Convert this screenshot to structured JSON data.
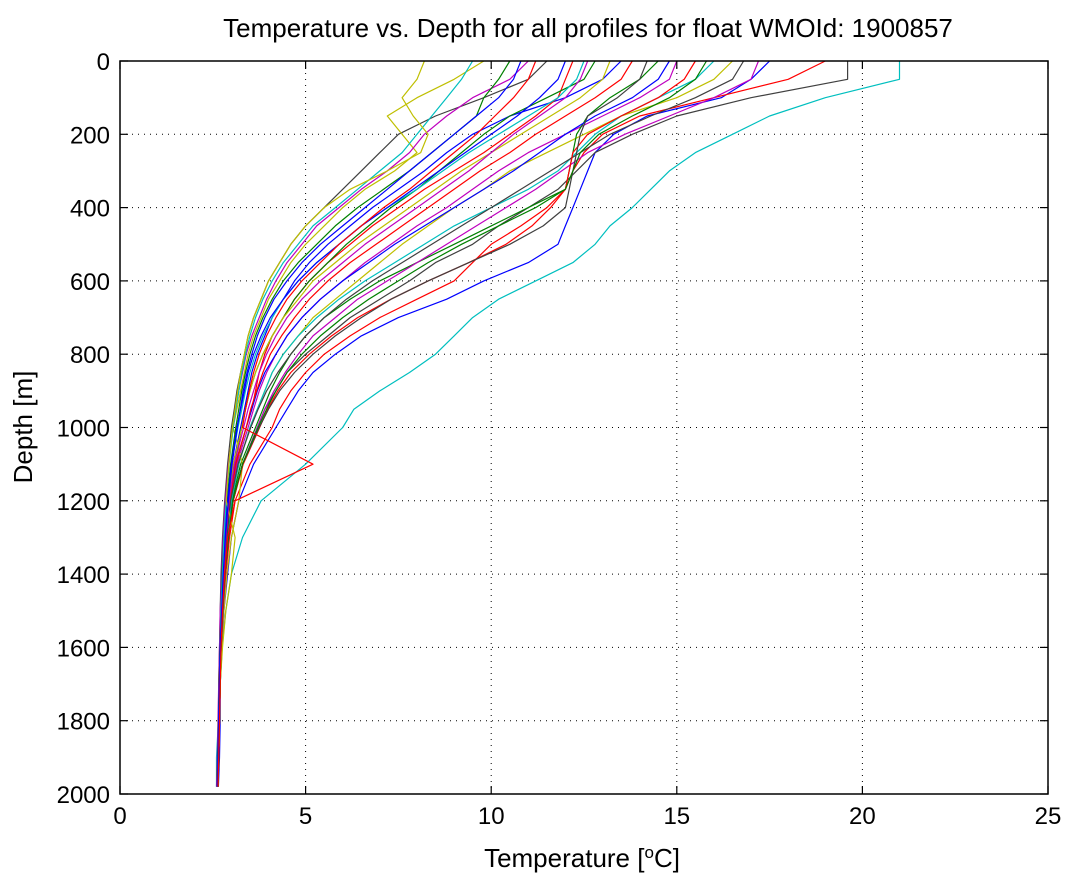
{
  "chart_data": {
    "type": "line",
    "title": "Temperature vs. Depth for all profiles for float WMOId: 1900857",
    "xlabel_main": "Temperature [",
    "xlabel_sup": "o",
    "xlabel_end": "C]",
    "ylabel": "Depth [m]",
    "xlim": [
      0,
      25
    ],
    "ylim": [
      0,
      2000
    ],
    "y_reversed": true,
    "grid": true,
    "x_ticks": [
      "0",
      "5",
      "10",
      "15",
      "20",
      "25"
    ],
    "y_ticks": [
      "0",
      "200",
      "400",
      "600",
      "800",
      "1000",
      "1200",
      "1400",
      "1600",
      "1800",
      "2000"
    ],
    "depths": [
      0,
      50,
      100,
      150,
      200,
      250,
      300,
      350,
      400,
      450,
      500,
      550,
      600,
      650,
      700,
      750,
      800,
      850,
      900,
      950,
      1000,
      1100,
      1200,
      1300,
      1400,
      1500,
      1600,
      1700,
      1800,
      1900,
      1980
    ],
    "series": [
      {
        "color": "#00bfbf",
        "values": [
          21.0,
          21.0,
          19.0,
          17.5,
          16.5,
          15.5,
          14.8,
          14.3,
          13.8,
          13.2,
          12.8,
          12.2,
          11.2,
          10.2,
          9.5,
          9.0,
          8.5,
          7.8,
          7.0,
          6.3,
          6.0,
          5.0,
          3.8,
          3.3,
          3.0,
          2.85,
          2.75,
          2.7,
          2.65,
          2.6,
          2.6
        ]
      },
      {
        "color": "#0000ff",
        "values": [
          17.5,
          17.0,
          16.2,
          14.2,
          13.3,
          12.8,
          12.6,
          12.4,
          12.2,
          12.0,
          11.8,
          11.0,
          9.8,
          8.8,
          7.5,
          6.5,
          5.8,
          5.2,
          4.8,
          4.5,
          4.2,
          3.6,
          3.2,
          3.0,
          2.9,
          2.8,
          2.75,
          2.7,
          2.7,
          2.68,
          2.65
        ]
      },
      {
        "color": "#ff0000",
        "values": [
          19.0,
          18.0,
          16.0,
          14.0,
          13.0,
          12.5,
          12.2,
          12.0,
          11.5,
          10.8,
          10.0,
          9.5,
          9.0,
          8.0,
          7.0,
          6.2,
          5.5,
          5.0,
          4.6,
          4.3,
          4.1,
          3.5,
          3.1,
          2.95,
          2.85,
          2.78,
          2.72,
          2.7,
          2.68,
          2.66,
          2.64
        ]
      },
      {
        "color": "#404040",
        "values": [
          19.6,
          19.6,
          17.0,
          15.0,
          13.8,
          12.8,
          12.3,
          11.8,
          11.0,
          10.2,
          9.5,
          8.5,
          7.8,
          7.0,
          6.2,
          5.6,
          5.0,
          4.5,
          4.2,
          3.9,
          3.7,
          3.3,
          3.05,
          2.9,
          2.82,
          2.76,
          2.72,
          2.7,
          2.68,
          2.66,
          2.64
        ]
      },
      {
        "color": "#bfbf00",
        "values": [
          16.5,
          16.0,
          15.0,
          13.5,
          12.5,
          11.5,
          10.5,
          9.8,
          9.0,
          8.3,
          7.6,
          7.0,
          6.4,
          5.8,
          5.2,
          4.8,
          4.4,
          4.1,
          3.9,
          3.7,
          3.5,
          3.2,
          3.0,
          2.9,
          2.8,
          2.75,
          2.7,
          2.68,
          2.66,
          2.64,
          2.62
        ]
      },
      {
        "color": "#bf00bf",
        "values": [
          15.0,
          14.8,
          14.0,
          13.0,
          12.0,
          11.0,
          10.2,
          9.5,
          8.8,
          8.0,
          7.3,
          6.6,
          6.0,
          5.4,
          4.9,
          4.5,
          4.2,
          3.95,
          3.75,
          3.6,
          3.45,
          3.15,
          2.98,
          2.88,
          2.8,
          2.75,
          2.7,
          2.68,
          2.66,
          2.64,
          2.62
        ]
      },
      {
        "color": "#008000",
        "values": [
          14.5,
          14.0,
          13.2,
          12.6,
          12.3,
          12.2,
          12.1,
          12.0,
          11.0,
          10.0,
          9.0,
          8.0,
          7.0,
          6.2,
          5.5,
          5.0,
          4.6,
          4.3,
          4.05,
          3.85,
          3.65,
          3.25,
          3.02,
          2.9,
          2.82,
          2.76,
          2.72,
          2.7,
          2.68,
          2.66,
          2.64
        ]
      },
      {
        "color": "#0000ff",
        "values": [
          13.5,
          13.0,
          12.0,
          10.5,
          9.5,
          8.8,
          8.2,
          7.5,
          6.8,
          6.2,
          5.6,
          5.1,
          4.7,
          4.4,
          4.1,
          3.9,
          3.7,
          3.55,
          3.45,
          3.35,
          3.25,
          3.05,
          2.92,
          2.84,
          2.78,
          2.74,
          2.7,
          2.68,
          2.66,
          2.64,
          2.62
        ]
      },
      {
        "color": "#ff0000",
        "values": [
          12.2,
          12.0,
          11.8,
          11.2,
          10.5,
          9.8,
          9.0,
          8.2,
          7.5,
          6.8,
          6.2,
          5.6,
          5.1,
          4.7,
          4.4,
          4.1,
          3.9,
          3.75,
          3.65,
          3.55,
          3.4,
          3.1,
          2.95,
          2.86,
          2.8,
          2.75,
          2.71,
          2.69,
          2.67,
          2.65,
          2.63
        ]
      },
      {
        "color": "#00bfbf",
        "values": [
          16.0,
          15.5,
          14.5,
          13.5,
          12.8,
          12.3,
          11.8,
          11.0,
          10.0,
          9.0,
          8.2,
          7.4,
          6.6,
          5.9,
          5.3,
          4.8,
          4.4,
          4.1,
          3.9,
          3.7,
          3.5,
          3.2,
          3.0,
          2.9,
          2.8,
          2.75,
          2.7,
          2.68,
          2.66,
          2.64,
          2.62
        ]
      },
      {
        "color": "#404040",
        "values": [
          11.5,
          11.0,
          9.8,
          8.5,
          7.5,
          7.0,
          6.5,
          6.0,
          5.5,
          5.0,
          4.6,
          4.3,
          4.0,
          3.8,
          3.6,
          3.45,
          3.35,
          3.25,
          3.15,
          3.08,
          3.0,
          2.9,
          2.82,
          2.76,
          2.72,
          2.7,
          2.68,
          2.66,
          2.65,
          2.63,
          2.62
        ]
      },
      {
        "color": "#bfbf00",
        "values": [
          9.8,
          9.0,
          8.0,
          7.2,
          7.6,
          8.0,
          7.4,
          6.6,
          6.0,
          5.5,
          5.0,
          4.6,
          4.3,
          4.0,
          3.8,
          3.6,
          3.45,
          3.35,
          3.25,
          3.15,
          3.05,
          3.3,
          3.2,
          3.0,
          2.88,
          2.8,
          2.74,
          2.7,
          2.68,
          2.66,
          2.64
        ]
      },
      {
        "color": "#bf00bf",
        "values": [
          11.0,
          10.5,
          9.5,
          8.8,
          8.2,
          7.8,
          7.2,
          6.5,
          5.9,
          5.3,
          4.9,
          4.5,
          4.2,
          3.95,
          3.75,
          3.55,
          3.4,
          3.3,
          3.2,
          3.12,
          3.05,
          2.92,
          2.84,
          2.78,
          2.74,
          2.7,
          2.68,
          2.66,
          2.64,
          2.62,
          2.6
        ]
      },
      {
        "color": "#008000",
        "values": [
          12.8,
          12.5,
          11.5,
          10.5,
          9.8,
          9.2,
          8.6,
          8.0,
          7.3,
          6.7,
          6.1,
          5.6,
          5.1,
          4.7,
          4.4,
          4.1,
          3.85,
          3.65,
          3.5,
          3.38,
          3.28,
          3.08,
          2.94,
          2.85,
          2.79,
          2.74,
          2.7,
          2.68,
          2.66,
          2.64,
          2.62
        ]
      },
      {
        "color": "#0000ff",
        "values": [
          14.8,
          14.5,
          13.8,
          12.8,
          12.0,
          11.3,
          10.6,
          9.8,
          9.0,
          8.2,
          7.4,
          6.7,
          6.0,
          5.4,
          4.9,
          4.5,
          4.2,
          3.9,
          3.7,
          3.55,
          3.4,
          3.12,
          2.96,
          2.86,
          2.8,
          2.75,
          2.71,
          2.69,
          2.67,
          2.65,
          2.63
        ]
      },
      {
        "color": "#ff0000",
        "values": [
          13.8,
          13.5,
          12.8,
          12.0,
          11.2,
          10.5,
          9.7,
          9.0,
          8.3,
          7.6,
          6.9,
          6.2,
          5.6,
          5.1,
          4.7,
          4.35,
          4.05,
          3.85,
          3.68,
          3.52,
          3.4,
          3.12,
          2.96,
          2.86,
          2.8,
          2.75,
          2.71,
          2.69,
          2.67,
          2.65,
          2.63
        ]
      },
      {
        "color": "#00bfbf",
        "values": [
          12.5,
          12.3,
          11.8,
          11.0,
          10.2,
          9.4,
          8.7,
          8.0,
          7.2,
          6.5,
          5.9,
          5.3,
          4.8,
          4.4,
          4.1,
          3.85,
          3.65,
          3.5,
          3.38,
          3.28,
          3.18,
          3.0,
          2.9,
          2.82,
          2.77,
          2.73,
          2.7,
          2.68,
          2.66,
          2.64,
          2.62
        ]
      },
      {
        "color": "#404040",
        "values": [
          16.8,
          16.5,
          15.5,
          14.3,
          13.2,
          12.4,
          11.6,
          10.8,
          10.0,
          9.2,
          8.4,
          7.6,
          6.8,
          6.1,
          5.5,
          5.0,
          4.6,
          4.25,
          3.95,
          3.72,
          3.52,
          3.18,
          2.98,
          2.88,
          2.8,
          2.75,
          2.71,
          2.69,
          2.67,
          2.65,
          2.63
        ]
      },
      {
        "color": "#bfbf00",
        "values": [
          13.2,
          13.0,
          12.4,
          11.6,
          10.8,
          10.0,
          9.2,
          8.5,
          7.8,
          7.1,
          6.4,
          5.8,
          5.2,
          4.8,
          4.4,
          4.1,
          3.85,
          3.65,
          3.5,
          3.38,
          3.28,
          3.05,
          2.92,
          2.84,
          2.78,
          2.74,
          2.7,
          2.68,
          2.66,
          2.64,
          2.62
        ]
      },
      {
        "color": "#bf00bf",
        "values": [
          17.2,
          17.0,
          16.0,
          14.8,
          13.6,
          12.6,
          11.9,
          11.2,
          10.4,
          9.6,
          8.8,
          8.0,
          7.2,
          6.4,
          5.8,
          5.2,
          4.8,
          4.45,
          4.15,
          3.9,
          3.7,
          3.3,
          3.05,
          2.92,
          2.84,
          2.78,
          2.73,
          2.7,
          2.68,
          2.66,
          2.64
        ]
      },
      {
        "color": "#008000",
        "values": [
          10.5,
          10.2,
          9.8,
          9.6,
          9.0,
          8.4,
          7.8,
          7.1,
          6.4,
          5.8,
          5.3,
          4.8,
          4.4,
          4.1,
          3.85,
          3.65,
          3.5,
          3.38,
          3.28,
          3.2,
          3.12,
          2.98,
          2.88,
          2.8,
          2.75,
          2.72,
          2.69,
          2.67,
          2.65,
          2.63,
          2.61
        ]
      },
      {
        "color": "#0000ff",
        "values": [
          12.0,
          11.8,
          11.3,
          10.7,
          10.0,
          9.3,
          8.6,
          7.9,
          7.2,
          6.5,
          5.9,
          5.3,
          4.8,
          4.4,
          4.05,
          3.8,
          3.6,
          3.45,
          3.35,
          3.25,
          3.15,
          3.0,
          2.9,
          2.82,
          2.77,
          2.73,
          2.7,
          2.68,
          2.66,
          2.64,
          2.62
        ]
      },
      {
        "color": "#ff0000",
        "values": [
          15.5,
          15.2,
          14.5,
          13.5,
          12.6,
          12.2,
          12.1,
          12.0,
          11.6,
          11.1,
          10.4,
          9.4,
          8.3,
          7.3,
          6.4,
          5.7,
          5.1,
          4.6,
          4.25,
          3.98,
          3.76,
          3.32,
          3.05,
          2.92,
          2.83,
          2.77,
          2.73,
          2.7,
          2.68,
          2.66,
          2.64
        ]
      },
      {
        "color": "#00bfbf",
        "values": [
          9.5,
          9.2,
          8.8,
          8.4,
          8.0,
          7.6,
          7.0,
          6.4,
          5.8,
          5.2,
          4.8,
          4.4,
          4.1,
          3.85,
          3.65,
          3.5,
          3.38,
          3.28,
          3.2,
          3.12,
          3.05,
          2.94,
          2.86,
          2.8,
          2.76,
          2.72,
          2.7,
          2.68,
          2.66,
          2.64,
          2.62
        ]
      },
      {
        "color": "#404040",
        "values": [
          14.2,
          14.0,
          13.4,
          12.6,
          12.4,
          12.3,
          12.2,
          12.1,
          12.0,
          11.4,
          10.5,
          9.4,
          8.3,
          7.3,
          6.5,
          5.8,
          5.2,
          4.7,
          4.3,
          4.0,
          3.75,
          3.3,
          3.04,
          2.92,
          2.83,
          2.77,
          2.73,
          2.7,
          2.68,
          2.66,
          2.64
        ]
      },
      {
        "color": "#bfbf00",
        "values": [
          8.2,
          8.0,
          7.6,
          7.9,
          8.3,
          8.1,
          7.2,
          6.2,
          5.5,
          5.0,
          4.6,
          4.3,
          4.0,
          3.8,
          3.6,
          3.45,
          3.35,
          3.25,
          3.17,
          3.1,
          3.03,
          2.93,
          2.86,
          3.1,
          3.0,
          2.85,
          2.76,
          2.7,
          2.68,
          2.66,
          2.64
        ]
      },
      {
        "color": "#bf00bf",
        "values": [
          12.6,
          12.4,
          12.0,
          11.3,
          10.6,
          10.0,
          9.4,
          8.7,
          8.0,
          7.3,
          6.6,
          6.0,
          5.4,
          4.9,
          4.5,
          4.2,
          3.95,
          3.75,
          3.6,
          3.45,
          3.33,
          3.08,
          2.94,
          2.85,
          2.79,
          2.74,
          2.7,
          2.68,
          2.66,
          2.64,
          2.62
        ]
      },
      {
        "color": "#008000",
        "values": [
          15.8,
          15.5,
          14.8,
          13.8,
          12.9,
          12.4,
          12.2,
          12.0,
          11.2,
          10.2,
          9.2,
          8.3,
          7.5,
          6.7,
          6.0,
          5.4,
          4.9,
          4.5,
          4.2,
          3.95,
          3.72,
          3.3,
          3.04,
          2.92,
          2.83,
          2.77,
          2.72,
          2.7,
          2.68,
          2.66,
          2.64
        ]
      },
      {
        "color": "#0000ff",
        "values": [
          10.8,
          10.6,
          10.2,
          9.6,
          9.0,
          8.4,
          7.8,
          7.2,
          6.6,
          6.0,
          5.4,
          4.9,
          4.5,
          4.15,
          3.9,
          3.7,
          3.55,
          3.42,
          3.32,
          3.24,
          3.16,
          3.02,
          2.92,
          2.84,
          2.78,
          2.74,
          2.7,
          2.68,
          2.66,
          2.64,
          2.62
        ]
      },
      {
        "color": "#ff0000",
        "values": [
          11.2,
          11.0,
          10.6,
          10.1,
          9.6,
          9.0,
          8.4,
          7.8,
          7.1,
          6.5,
          5.9,
          5.4,
          4.9,
          4.5,
          4.2,
          3.95,
          3.75,
          3.6,
          3.48,
          3.38,
          3.3,
          5.2,
          3.1,
          2.9,
          2.82,
          2.76,
          2.72,
          2.7,
          2.68,
          2.66,
          2.64
        ]
      }
    ]
  }
}
